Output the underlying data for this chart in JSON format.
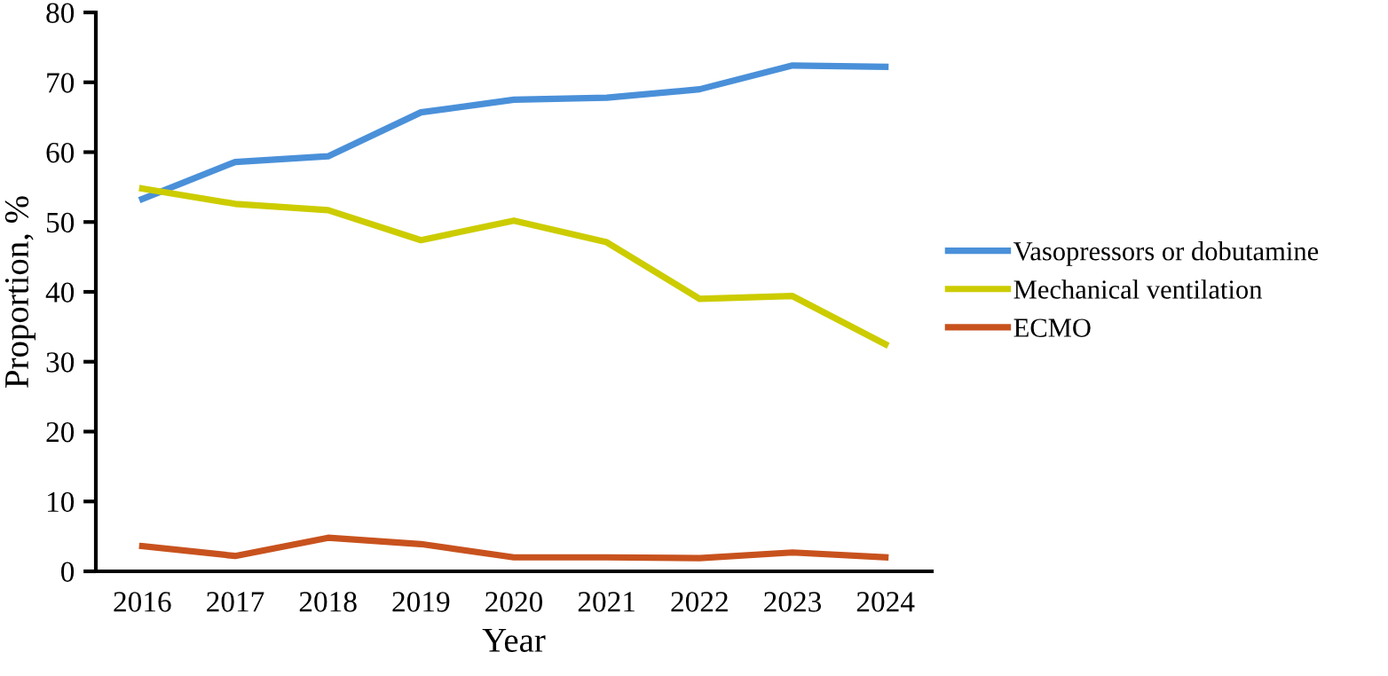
{
  "chart_data": {
    "type": "line",
    "xlabel": "Year",
    "ylabel": "Proportion, %",
    "categories": [
      "2016",
      "2017",
      "2018",
      "2019",
      "2020",
      "2021",
      "2022",
      "2023",
      "2024"
    ],
    "series": [
      {
        "name": "Vasopressors or dobutamine",
        "color": "#4a90d9",
        "values": [
          53.3,
          58.6,
          59.4,
          65.7,
          67.5,
          67.8,
          69.0,
          72.4,
          72.2
        ]
      },
      {
        "name": "Mechanical ventilation",
        "color": "#cccc00",
        "values": [
          54.8,
          52.6,
          51.7,
          47.4,
          50.2,
          47.1,
          39.0,
          39.4,
          32.5
        ]
      },
      {
        "name": "ECMO",
        "color": "#c8521e",
        "values": [
          3.6,
          2.2,
          4.8,
          3.9,
          2.0,
          2.0,
          1.9,
          2.7,
          2.0
        ]
      }
    ],
    "ylim": [
      0,
      80
    ],
    "yticks": [
      0,
      10,
      20,
      30,
      40,
      50,
      60,
      70,
      80
    ],
    "grid": false,
    "legend": "right",
    "marker": "none"
  }
}
